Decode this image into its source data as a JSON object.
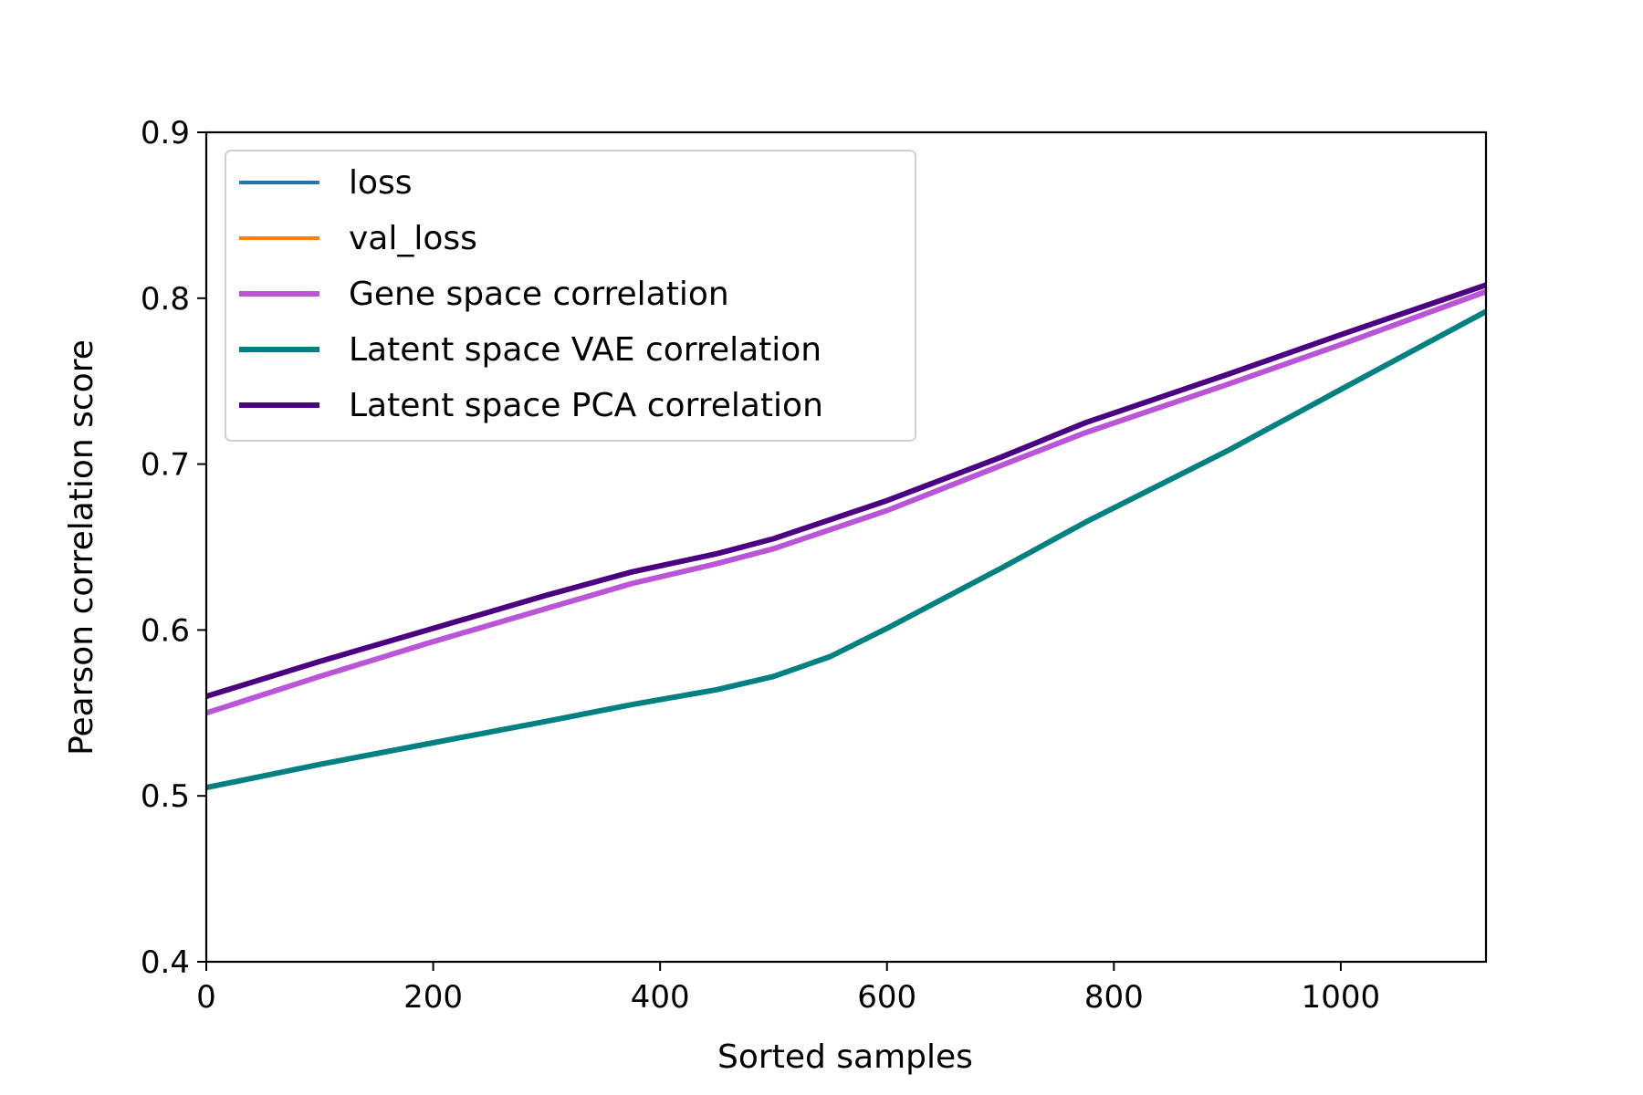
{
  "chart_data": {
    "type": "line",
    "title": "",
    "xlabel": "Sorted samples",
    "ylabel": "Pearson correlation score",
    "xlim": [
      0,
      1128
    ],
    "ylim": [
      0.4,
      0.9
    ],
    "xticks": [
      0,
      200,
      400,
      600,
      800,
      1000
    ],
    "xtick_labels": [
      "0",
      "200",
      "400",
      "600",
      "800",
      "1000"
    ],
    "yticks": [
      0.4,
      0.5,
      0.6,
      0.7,
      0.8,
      0.9
    ],
    "ytick_labels": [
      "0.4",
      "0.5",
      "0.6",
      "0.7",
      "0.8",
      "0.9"
    ],
    "grid": false,
    "legend_position": "top-left",
    "series": [
      {
        "name": "loss",
        "color": "#1f77b4",
        "legend_only": true,
        "x": [],
        "y": []
      },
      {
        "name": "val_loss",
        "color": "#ff7f0e",
        "legend_only": true,
        "x": [],
        "y": []
      },
      {
        "name": "Gene space correlation",
        "color": "#bb55d8",
        "x": [
          0,
          100,
          200,
          300,
          375,
          450,
          500,
          600,
          700,
          775,
          900,
          1000,
          1128
        ],
        "y": [
          0.55,
          0.572,
          0.593,
          0.613,
          0.628,
          0.64,
          0.649,
          0.672,
          0.699,
          0.719,
          0.748,
          0.772,
          0.804
        ]
      },
      {
        "name": "Latent space VAE correlation",
        "color": "#008080",
        "x": [
          0,
          100,
          200,
          300,
          375,
          450,
          500,
          550,
          600,
          700,
          775,
          900,
          1000,
          1128
        ],
        "y": [
          0.505,
          0.519,
          0.532,
          0.545,
          0.555,
          0.564,
          0.572,
          0.584,
          0.601,
          0.637,
          0.665,
          0.708,
          0.745,
          0.792
        ]
      },
      {
        "name": "Latent space PCA correlation",
        "color": "#4b0082",
        "x": [
          0,
          100,
          200,
          300,
          375,
          450,
          500,
          600,
          700,
          775,
          900,
          1000,
          1128
        ],
        "y": [
          0.56,
          0.581,
          0.601,
          0.621,
          0.635,
          0.646,
          0.655,
          0.678,
          0.704,
          0.725,
          0.754,
          0.778,
          0.808
        ]
      }
    ]
  }
}
